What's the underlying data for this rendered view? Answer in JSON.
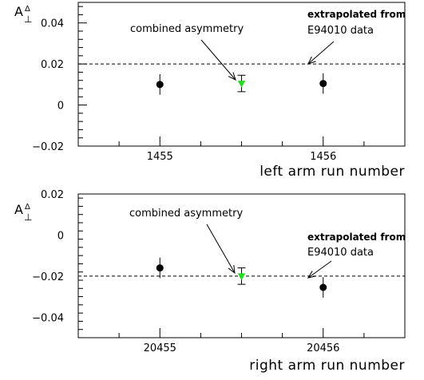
{
  "chart_data": [
    {
      "type": "scatter",
      "xlabel": "left arm run number",
      "ylabel": "A",
      "ylabel_sup": "Δ",
      "ylabel_sub": "⊥",
      "xlim": [
        1454.5,
        1456.5
      ],
      "ylim": [
        -0.02,
        0.05
      ],
      "xticks": [
        1455,
        1456
      ],
      "xtick_labels": [
        "1455",
        "1456"
      ],
      "yticks": [
        -0.02,
        0,
        0.02,
        0.04
      ],
      "ytick_labels": [
        "−0.02",
        "0",
        "0.02",
        "0.04"
      ],
      "grid": false,
      "points": [
        {
          "x": 1455.0,
          "y": 0.01,
          "err": 0.005,
          "marker": "circle",
          "color": "#000000"
        },
        {
          "x": 1455.5,
          "y": 0.0105,
          "err": 0.004,
          "marker": "triangle-down",
          "color": "#22dd22"
        },
        {
          "x": 1456.0,
          "y": 0.0105,
          "err": 0.005,
          "marker": "circle",
          "color": "#000000"
        }
      ],
      "reference_line": {
        "y": 0.02,
        "style": "dashed"
      },
      "annotations": [
        {
          "text": "combined asymmetry",
          "style": "normal"
        },
        {
          "text": "extrapolated from",
          "style": "bold"
        },
        {
          "text": "E94010 data",
          "style": "normal"
        }
      ]
    },
    {
      "type": "scatter",
      "xlabel": "right arm run number",
      "ylabel": "A",
      "ylabel_sup": "Δ",
      "ylabel_sub": "⊥",
      "xlim": [
        20454.5,
        20456.5
      ],
      "ylim": [
        -0.05,
        0.02
      ],
      "xticks": [
        20455,
        20456
      ],
      "xtick_labels": [
        "20455",
        "20456"
      ],
      "yticks": [
        -0.04,
        -0.02,
        0,
        0.02
      ],
      "ytick_labels": [
        "−0.04",
        "−0.02",
        "0",
        "0.02"
      ],
      "grid": false,
      "points": [
        {
          "x": 20455.0,
          "y": -0.016,
          "err": 0.005,
          "marker": "circle",
          "color": "#000000"
        },
        {
          "x": 20455.5,
          "y": -0.02,
          "err": 0.004,
          "marker": "triangle-down",
          "color": "#22dd22"
        },
        {
          "x": 20456.0,
          "y": -0.0255,
          "err": 0.005,
          "marker": "circle",
          "color": "#000000"
        }
      ],
      "reference_line": {
        "y": -0.02,
        "style": "dashed"
      },
      "annotations": [
        {
          "text": "combined asymmetry",
          "style": "normal"
        },
        {
          "text": "extrapolated from",
          "style": "bold"
        },
        {
          "text": "E94010 data",
          "style": "normal"
        }
      ]
    }
  ]
}
